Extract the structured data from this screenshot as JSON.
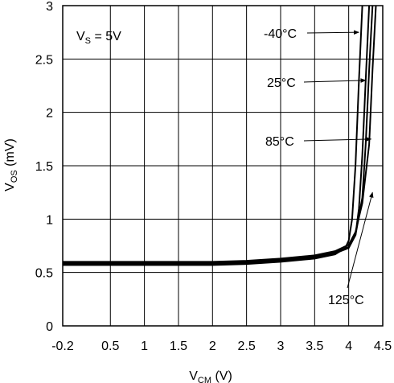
{
  "chart_data": {
    "type": "line",
    "xlabel": {
      "main": "V",
      "sub": "CM",
      "unit": " (V)"
    },
    "ylabel": {
      "main": "V",
      "sub": "OS",
      "unit": " (mV)"
    },
    "xlim": [
      -0.2,
      4.5
    ],
    "ylim": [
      0,
      3
    ],
    "x_ticks": [
      -0.2,
      0.5,
      1,
      1.5,
      2,
      2.5,
      3,
      3.5,
      4,
      4.5
    ],
    "x_tick_labels": [
      "-0.2",
      "0.5",
      "1",
      "1.5",
      "2",
      "2.5",
      "3",
      "3.5",
      "4",
      "4.5"
    ],
    "y_ticks": [
      0,
      0.5,
      1,
      1.5,
      2,
      2.5,
      3
    ],
    "y_tick_labels": [
      "0",
      "0.5",
      "1",
      "1.5",
      "2",
      "2.5",
      "3"
    ],
    "grid": true,
    "condition_label": {
      "main": "V",
      "sub": "S",
      "rest": " = 5V"
    },
    "series": [
      {
        "name": "-40°C",
        "x": [
          -0.2,
          0.5,
          1,
          1.5,
          2,
          2.5,
          3,
          3.5,
          3.8,
          3.95,
          4.0,
          4.05,
          4.1,
          4.15,
          4.2
        ],
        "y": [
          0.57,
          0.57,
          0.57,
          0.57,
          0.57,
          0.58,
          0.6,
          0.63,
          0.67,
          0.73,
          0.8,
          1.0,
          1.5,
          2.3,
          3.0
        ]
      },
      {
        "name": "25°C",
        "x": [
          -0.2,
          0.5,
          1,
          1.5,
          2,
          2.5,
          3,
          3.5,
          3.8,
          4.0,
          4.1,
          4.15,
          4.2,
          4.25,
          4.3
        ],
        "y": [
          0.58,
          0.58,
          0.58,
          0.58,
          0.58,
          0.59,
          0.61,
          0.64,
          0.68,
          0.73,
          0.85,
          1.1,
          1.6,
          2.3,
          3.0
        ]
      },
      {
        "name": "85°C",
        "x": [
          -0.2,
          0.5,
          1,
          1.5,
          2,
          2.5,
          3,
          3.5,
          3.8,
          4.0,
          4.1,
          4.2,
          4.25,
          4.3,
          4.35
        ],
        "y": [
          0.59,
          0.59,
          0.59,
          0.59,
          0.59,
          0.6,
          0.62,
          0.65,
          0.69,
          0.74,
          0.85,
          1.2,
          1.7,
          2.4,
          3.0
        ]
      },
      {
        "name": "125°C",
        "x": [
          -0.2,
          0.5,
          1,
          1.5,
          2,
          2.5,
          3,
          3.5,
          3.8,
          4.0,
          4.1,
          4.2,
          4.3,
          4.35,
          4.4
        ],
        "y": [
          0.6,
          0.6,
          0.6,
          0.6,
          0.6,
          0.61,
          0.63,
          0.66,
          0.7,
          0.76,
          0.88,
          1.15,
          1.7,
          2.4,
          3.0
        ]
      }
    ],
    "annotations": [
      {
        "text": "-40°C",
        "series": "-40°C",
        "arrow_to": [
          4.15,
          2.75
        ]
      },
      {
        "text": "25°C",
        "series": "25°C",
        "arrow_to": [
          4.25,
          2.3
        ]
      },
      {
        "text": "85°C",
        "series": "85°C",
        "arrow_to": [
          4.33,
          1.75
        ]
      },
      {
        "text": "125°C",
        "series": "125°C",
        "arrow_to": [
          4.35,
          1.25
        ]
      }
    ]
  }
}
